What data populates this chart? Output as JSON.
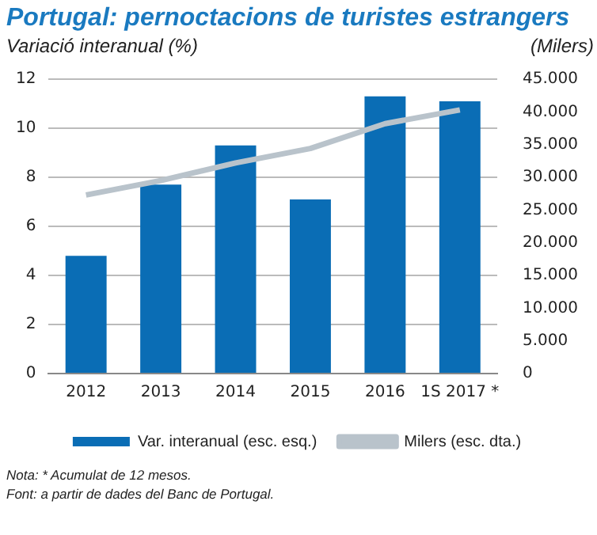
{
  "chart_data": {
    "type": "bar",
    "title": "Portugal: pernoctacions de turistes estrangers",
    "ylabel": "Variació interanual (%)",
    "y2label": "(Milers)",
    "categories": [
      "2012",
      "2013",
      "2014",
      "2015",
      "2016",
      "1S 2017 *"
    ],
    "series": [
      {
        "name": "Var. interanual (esc. esq.)",
        "color": "#0a6db5",
        "values": [
          4.8,
          7.7,
          9.3,
          7.1,
          11.3,
          11.1
        ]
      },
      {
        "name": "Milers (esc. dta.)",
        "type": "line",
        "axis": "y2",
        "color": "#b9c3cb",
        "values": [
          27300,
          29500,
          32200,
          34400,
          38200,
          40300
        ]
      }
    ],
    "ylim": [
      0,
      12
    ],
    "yticks": [
      0,
      2,
      4,
      6,
      8,
      10,
      12
    ],
    "y2lim": [
      0,
      45000
    ],
    "y2ticks": [
      {
        "value": 0,
        "label": "0"
      },
      {
        "value": 5000,
        "label": "5.000"
      },
      {
        "value": 10000,
        "label": "10.000"
      },
      {
        "value": 15000,
        "label": "15.000"
      },
      {
        "value": 20000,
        "label": "20.000"
      },
      {
        "value": 25000,
        "label": "25.000"
      },
      {
        "value": 30000,
        "label": "30.000"
      },
      {
        "value": 35000,
        "label": "35.000"
      },
      {
        "value": 40000,
        "label": "40.000"
      },
      {
        "value": 45000,
        "label": "45.000"
      }
    ],
    "grid": "y",
    "legend": "bottom",
    "marker": "none",
    "annotations": [
      "Nota: * Acumulat de 12 mesos.",
      "Font: a partir de dades del Banc de Portugal."
    ]
  }
}
